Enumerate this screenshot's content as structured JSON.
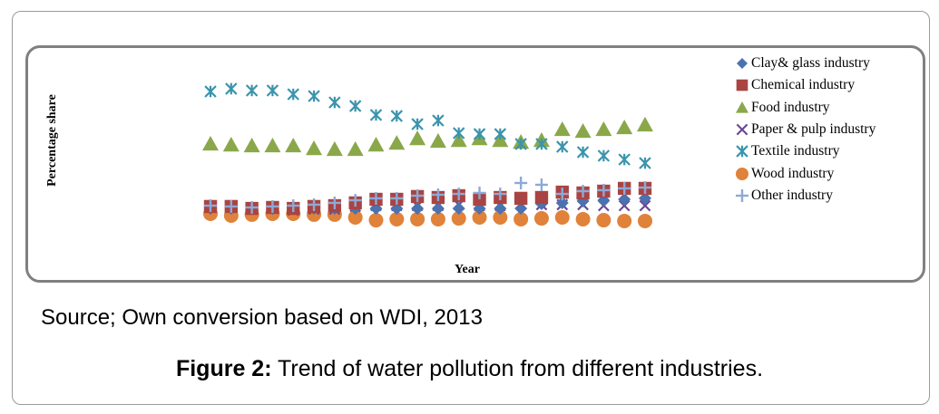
{
  "figure": {
    "source_text": "Source; Own conversion based on WDI, 2013",
    "caption_label": "Figure 2:",
    "caption_text": " Trend of water pollution from different industries."
  },
  "chart_data": {
    "type": "scatter",
    "title": "",
    "xlabel": "Year",
    "ylabel": "Percentage share",
    "x": [
      1,
      2,
      3,
      4,
      5,
      6,
      7,
      8,
      9,
      10,
      11,
      12,
      13,
      14,
      15,
      16,
      17,
      18,
      19,
      20,
      21,
      22
    ],
    "x_tick_labels": [],
    "y_tick_labels": [],
    "ylim": [
      0,
      100
    ],
    "y_units_note": "relative scale (no axis ticks shown)",
    "grid": false,
    "legend_position": "right",
    "series": [
      {
        "name": "Clay& glass industry",
        "marker": "diamond",
        "color": "#4a72b0",
        "values": [
          19.4,
          19.4,
          19.4,
          19.4,
          19.4,
          19.4,
          19.4,
          19.4,
          19.4,
          19.4,
          19.4,
          19.4,
          19.4,
          19.4,
          19.4,
          19.4,
          22.2,
          22.8,
          23.9,
          24.4,
          25.0,
          25.6
        ]
      },
      {
        "name": "Chemical industry",
        "marker": "square",
        "color": "#a94442",
        "values": [
          20.6,
          20.6,
          19.4,
          20.0,
          19.4,
          20.6,
          21.1,
          22.8,
          25.0,
          25.0,
          26.7,
          26.1,
          27.2,
          25.0,
          26.1,
          25.6,
          26.1,
          29.4,
          28.9,
          30.0,
          31.7,
          31.7
        ]
      },
      {
        "name": "Food industry",
        "marker": "triangle",
        "color": "#8aa84a",
        "values": [
          58.9,
          58.3,
          57.8,
          57.8,
          57.8,
          56.1,
          55.6,
          55.6,
          58.3,
          59.4,
          62.2,
          60.6,
          61.1,
          62.2,
          61.1,
          60.0,
          61.1,
          67.8,
          66.7,
          67.8,
          68.9,
          70.6
        ]
      },
      {
        "name": "Paper & pulp industry",
        "marker": "x",
        "color": "#6b4a93",
        "values": [
          20.0,
          20.0,
          19.4,
          20.0,
          18.3,
          18.9,
          18.9,
          20.6,
          21.1,
          21.1,
          21.1,
          21.1,
          21.7,
          21.1,
          21.1,
          22.2,
          21.7,
          21.7,
          21.7,
          21.1,
          21.1,
          21.1
        ]
      },
      {
        "name": "Textile industry",
        "marker": "asterisk",
        "color": "#3b94ad",
        "values": [
          91.1,
          92.8,
          91.7,
          91.7,
          89.4,
          88.3,
          84.4,
          82.2,
          76.7,
          76.1,
          71.1,
          73.3,
          65.6,
          65.0,
          65.0,
          58.9,
          58.9,
          57.2,
          53.9,
          51.7,
          49.4,
          47.2
        ]
      },
      {
        "name": "Wood industry",
        "marker": "circle",
        "color": "#e0823a",
        "values": [
          16.1,
          15.0,
          15.6,
          16.1,
          16.1,
          15.6,
          15.6,
          13.9,
          12.2,
          12.8,
          12.8,
          12.8,
          13.3,
          13.9,
          13.9,
          12.8,
          13.3,
          13.9,
          12.8,
          12.2,
          11.7,
          11.7
        ]
      },
      {
        "name": "Other industry",
        "marker": "plus",
        "color": "#8ea9d6",
        "values": [
          21.1,
          20.6,
          20.0,
          20.6,
          21.1,
          21.7,
          22.8,
          24.4,
          25.6,
          25.6,
          27.2,
          27.8,
          28.3,
          28.9,
          28.3,
          35.0,
          33.9,
          28.3,
          30.0,
          30.6,
          31.7,
          32.2
        ]
      }
    ]
  }
}
